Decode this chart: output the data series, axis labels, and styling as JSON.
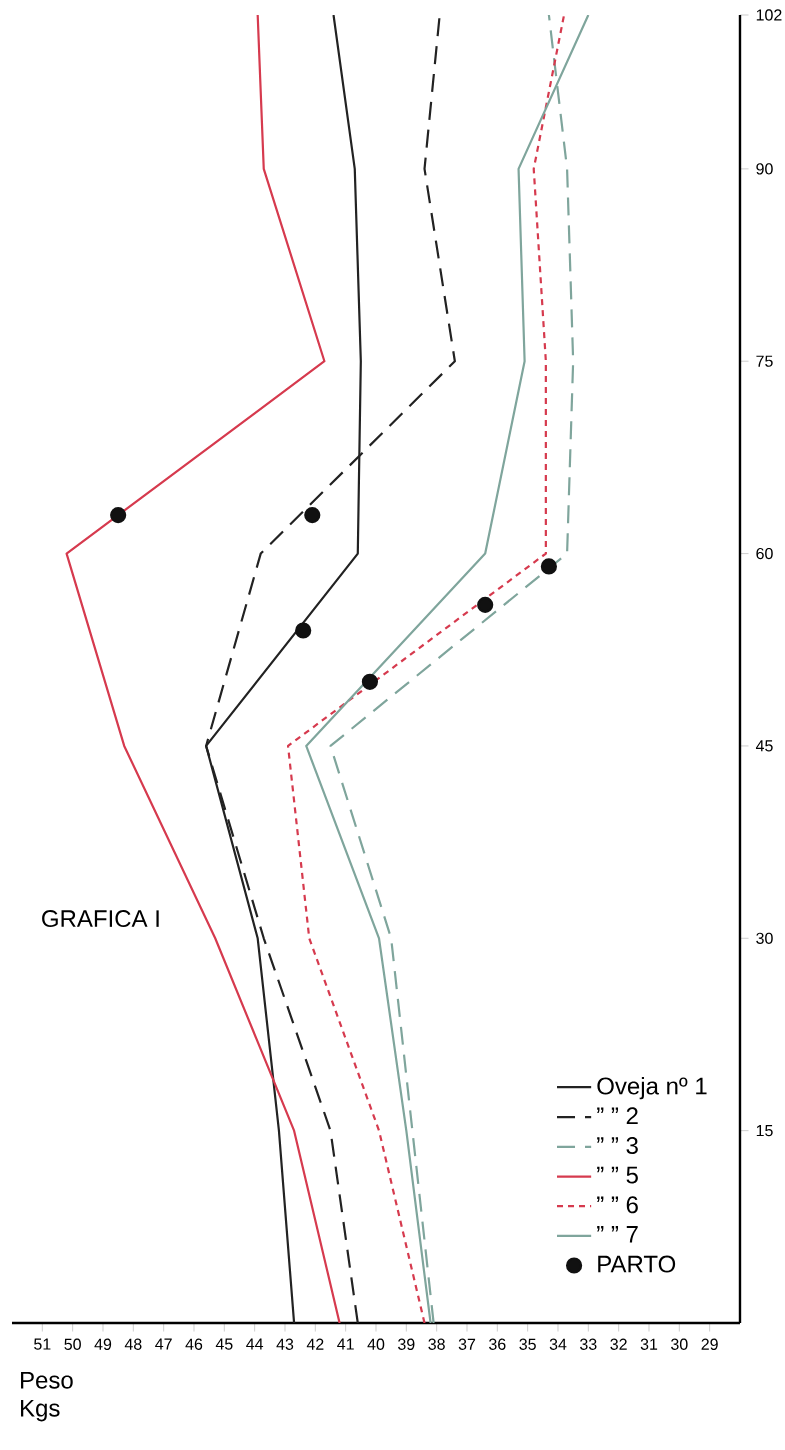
{
  "chart_data": {
    "type": "line",
    "orientation": "horizontal",
    "title": "GRAFICA I",
    "xlabel": "Peso Kgs",
    "x": [
      0,
      15,
      30,
      45,
      60,
      75,
      90,
      102
    ],
    "ylim": [
      0,
      102
    ],
    "xlim": [
      52,
      28
    ],
    "yticks": [
      15,
      30,
      45,
      60,
      75,
      90,
      102
    ],
    "xticks": [
      29,
      30,
      31,
      32,
      33,
      34,
      35,
      36,
      37,
      38,
      39,
      40,
      41,
      42,
      43,
      44,
      45,
      46,
      47,
      48,
      49,
      50,
      51
    ],
    "legend": "bottom right",
    "series": [
      {
        "name": "Oveja nº 1",
        "color": "#222222",
        "line_style": "solid",
        "values": [
          42.7,
          43.2,
          43.9,
          45.6,
          40.6,
          40.5,
          40.7,
          41.4
        ]
      },
      {
        "name": "” ” 2",
        "color": "#222222",
        "line_style": "dashed",
        "values": [
          40.6,
          41.5,
          43.7,
          45.6,
          43.8,
          37.4,
          38.4,
          37.9
        ]
      },
      {
        "name": "” ” 3",
        "color": "#7fa59c",
        "line_style": "dashed",
        "values": [
          38.1,
          38.8,
          39.5,
          41.5,
          33.7,
          33.5,
          33.7,
          34.3
        ]
      },
      {
        "name": "” ” 5",
        "color": "#d63a4e",
        "line_style": "solid",
        "values": [
          41.2,
          42.7,
          45.3,
          48.3,
          50.2,
          41.7,
          43.7,
          43.9
        ]
      },
      {
        "name": "” ” 6",
        "color": "#d63a4e",
        "line_style": "dotted",
        "values": [
          38.4,
          39.9,
          42.2,
          42.9,
          34.4,
          34.4,
          34.8,
          33.8
        ]
      },
      {
        "name": "” ” 7",
        "color": "#7fa59c",
        "line_style": "solid",
        "values": [
          38.2,
          39.0,
          39.9,
          42.3,
          36.4,
          35.1,
          35.3,
          33.0
        ]
      },
      {
        "name": "PARTO",
        "type": "scatter",
        "marker": "circle",
        "color": "#111111",
        "x": [
          63,
          63,
          54,
          50,
          56,
          59
        ],
        "values": [
          48.5,
          42.1,
          42.4,
          40.2,
          36.4,
          34.3
        ]
      }
    ]
  }
}
